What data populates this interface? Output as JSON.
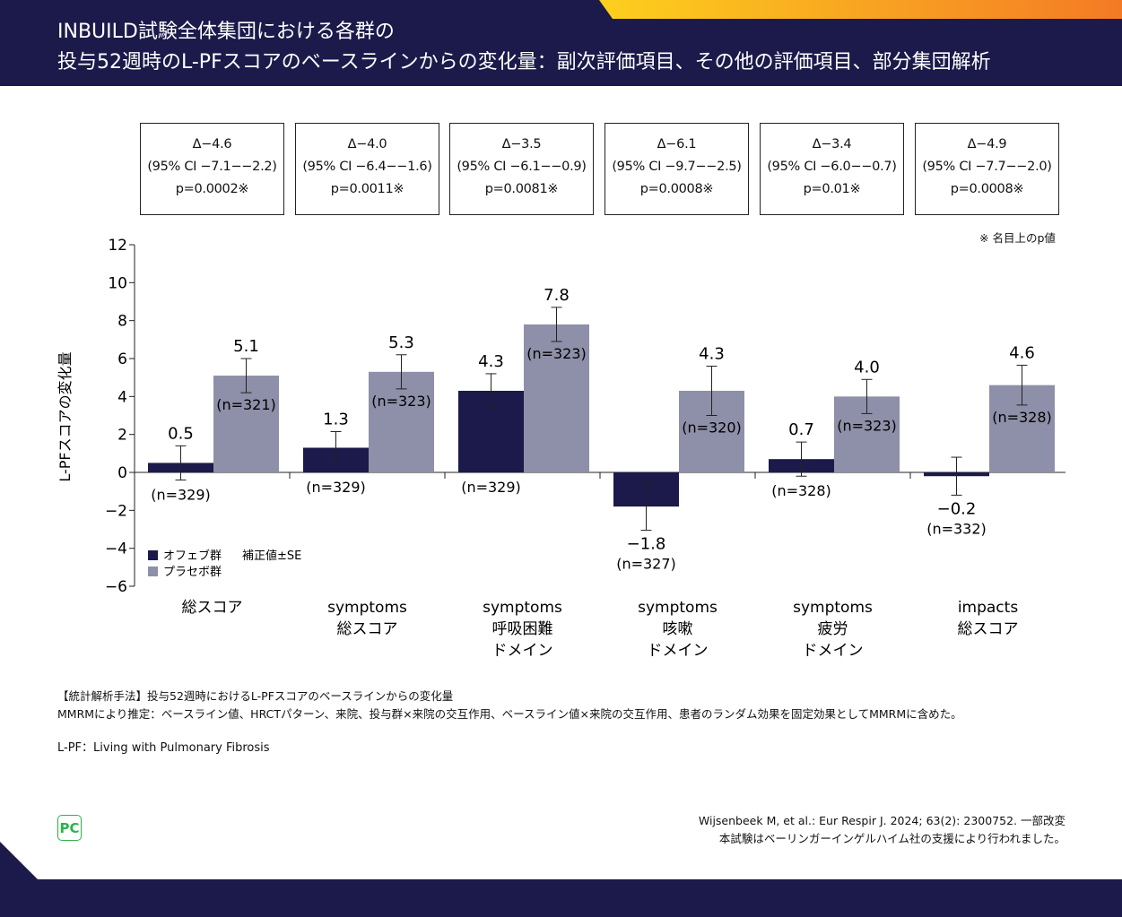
{
  "header": {
    "title_line1": "INBUILD試験全体集団における各群の",
    "title_line2": "投与52週時のL-PFスコアのベースラインからの変化量：副次評価項目、その他の評価項目、部分集団解析"
  },
  "ci_boxes": [
    {
      "delta": "Δ−4.6",
      "ci": "(95% CI −7.1−−2.2)",
      "p": "p=0.0002※"
    },
    {
      "delta": "Δ−4.0",
      "ci": "(95% CI −6.4−−1.6)",
      "p": "p=0.0011※"
    },
    {
      "delta": "Δ−3.5",
      "ci": "(95% CI −6.1−−0.9)",
      "p": "p=0.0081※"
    },
    {
      "delta": "Δ−6.1",
      "ci": "(95% CI −9.7−−2.5)",
      "p": "p=0.0008※"
    },
    {
      "delta": "Δ−3.4",
      "ci": "(95% CI −6.0−−0.7)",
      "p": "p=0.01※"
    },
    {
      "delta": "Δ−4.9",
      "ci": "(95% CI −7.7−−2.0)",
      "p": "p=0.0008※"
    }
  ],
  "nominal_note": "※ 名目上のp値",
  "chart_data": {
    "type": "bar",
    "ylabel": "L-PFスコアの変化量",
    "ylim": [
      -6,
      12
    ],
    "yticks": [
      "12",
      "10",
      "8",
      "6",
      "4",
      "2",
      "0",
      "−2",
      "−4",
      "−6"
    ],
    "categories": [
      [
        "総スコア"
      ],
      [
        "symptoms",
        "総スコア"
      ],
      [
        "symptoms",
        "呼吸困難",
        "ドメイン"
      ],
      [
        "symptoms",
        "咳嗽",
        "ドメイン"
      ],
      [
        "symptoms",
        "疲労",
        "ドメイン"
      ],
      [
        "impacts",
        "総スコア"
      ]
    ],
    "series": [
      {
        "name": "オフェブ群",
        "color": "#1b1a4a",
        "values": [
          0.5,
          1.3,
          4.3,
          -1.8,
          0.7,
          -0.2
        ],
        "labels": [
          "0.5",
          "1.3",
          "4.3",
          "−1.8",
          "0.7",
          "−0.2"
        ],
        "se": [
          0.9,
          0.85,
          0.9,
          1.25,
          0.9,
          1.0
        ],
        "n": [
          "(n=329)",
          "(n=329)",
          "(n=329)",
          "(n=327)",
          "(n=328)",
          "(n=332)"
        ]
      },
      {
        "name": "プラセボ群",
        "color": "#8e8fa8",
        "values": [
          5.1,
          5.3,
          7.8,
          4.3,
          4.0,
          4.6
        ],
        "labels": [
          "5.1",
          "5.3",
          "7.8",
          "4.3",
          "4.0",
          "4.6"
        ],
        "se": [
          0.9,
          0.9,
          0.9,
          1.3,
          0.9,
          1.05
        ],
        "n": [
          "(n=321)",
          "(n=323)",
          "(n=323)",
          "(n=320)",
          "(n=323)",
          "(n=328)"
        ]
      }
    ],
    "legend_note": "補正値±SE",
    "legend_position": "bottom-left"
  },
  "notes": {
    "method_title": "【統計解析手法】投与52週時におけるL-PFスコアのベースラインからの変化量",
    "method_body": "MMRMにより推定：ベースライン値、HRCTパターン、来院、投与群×来院の交互作用、ベースライン値×来院の交互作用、患者のランダム効果を固定効果としてMMRMに含めた。",
    "abbrev": "L-PF：Living with Pulmonary Fibrosis",
    "citation": "Wijsenbeek M, et al.: Eur Respir J. 2024; 63(2): 2300752. 一部改変",
    "support": "本試験はベーリンガーインゲルハイム社の支援により行われました。"
  },
  "logo": "PC"
}
